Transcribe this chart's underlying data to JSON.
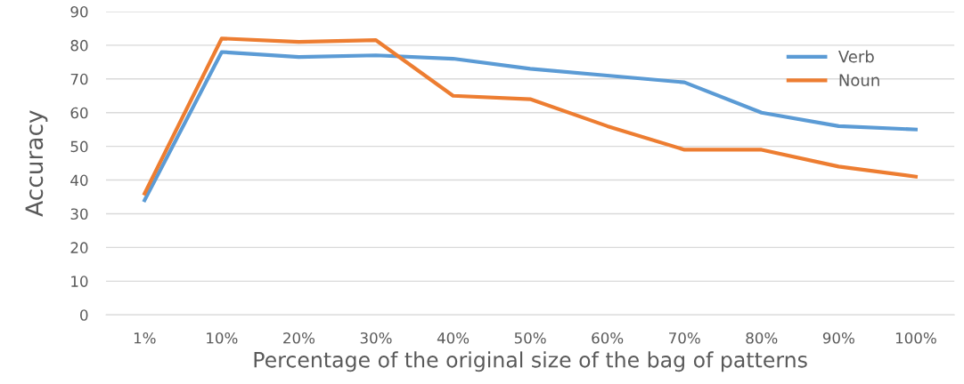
{
  "chart_data": {
    "type": "line",
    "xlabel": "Percentage of the original size of the bag of patterns",
    "ylabel": "Accuracy",
    "categories": [
      "1%",
      "10%",
      "20%",
      "30%",
      "40%",
      "50%",
      "60%",
      "70%",
      "80%",
      "90%",
      "100%"
    ],
    "series": [
      {
        "name": "Verb",
        "color": "#5b9bd5",
        "values": [
          34,
          78,
          76.5,
          77,
          76,
          73,
          71,
          69,
          60,
          56,
          55
        ]
      },
      {
        "name": "Noun",
        "color": "#ed7d31",
        "values": [
          36,
          82,
          81,
          81.5,
          65,
          64,
          56,
          49,
          49,
          44,
          41
        ]
      }
    ],
    "ylim": [
      0,
      90
    ],
    "yticks": [
      0,
      10,
      20,
      30,
      40,
      50,
      60,
      70,
      80,
      90
    ],
    "grid": "y",
    "legend": "top right",
    "marker": "none",
    "line_style": "solid"
  }
}
